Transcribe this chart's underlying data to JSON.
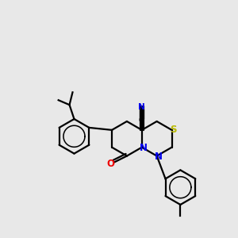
{
  "background_color": "#e8e8e8",
  "atom_colors": {
    "S": "#b8b800",
    "N": "#0000ee",
    "O": "#ee0000",
    "C": "#000000",
    "triple_N": "#0000ee"
  },
  "figsize": [
    3.0,
    3.0
  ],
  "dpi": 100,
  "lw": 1.6
}
